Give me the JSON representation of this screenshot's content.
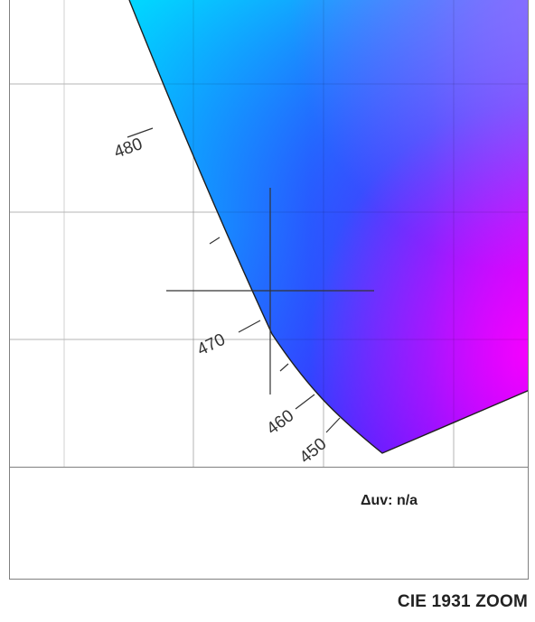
{
  "diagram": {
    "wavelength_labels": [
      {
        "nm": "480"
      },
      {
        "nm": "470"
      },
      {
        "nm": "460"
      },
      {
        "nm": "450"
      }
    ],
    "unlabeled_tick_count": 2
  },
  "info_panel": {
    "delta_uv": "Δuv: n/a"
  },
  "footer": {
    "title": "CIE 1931 ZOOM"
  },
  "colors": {
    "grid": "#d0d0d0",
    "locus": "#1e1e1e",
    "crosshair": "#333333",
    "cyan": "#00c8ff",
    "blue": "#2a3cff",
    "violet": "#b000ff",
    "magenta": "#ff00ff"
  }
}
